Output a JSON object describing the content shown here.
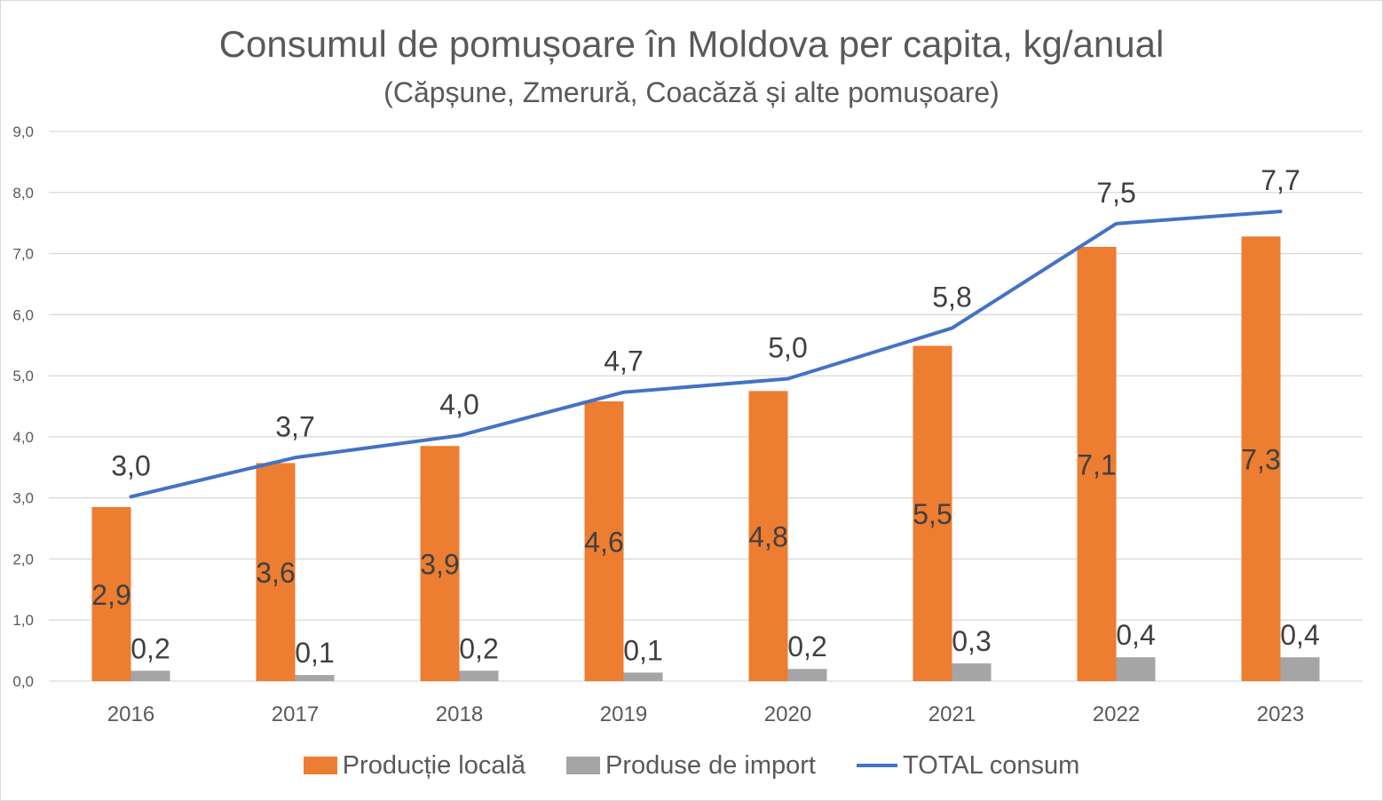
{
  "colors": {
    "local": "#ed7d31",
    "import": "#a5a5a5",
    "total": "#4472c4",
    "grid": "#d9d9d9"
  },
  "chart_data": {
    "type": "bar",
    "title": "Consumul de pomușoare în Moldova per capita, kg/anual",
    "subtitle": "(Căpșune, Zmerură, Coacăză și alte pomușoare)",
    "xlabel": "",
    "ylabel": "",
    "ylim": [
      0,
      9
    ],
    "yticks": [
      "0,0",
      "1,0",
      "2,0",
      "3,0",
      "4,0",
      "5,0",
      "6,0",
      "7,0",
      "8,0",
      "9,0"
    ],
    "grid": true,
    "legend_position": "bottom",
    "categories": [
      "2016",
      "2017",
      "2018",
      "2019",
      "2020",
      "2021",
      "2022",
      "2023"
    ],
    "series": [
      {
        "name": "Producție locală",
        "kind": "bar",
        "values": [
          2.85,
          3.57,
          3.85,
          4.58,
          4.75,
          5.49,
          7.11,
          7.28
        ],
        "labels": [
          "2,9",
          "3,6",
          "3,9",
          "4,6",
          "4,8",
          "5,5",
          "7,1",
          "7,3"
        ]
      },
      {
        "name": "Produse de import",
        "kind": "bar",
        "values": [
          0.17,
          0.1,
          0.17,
          0.14,
          0.2,
          0.29,
          0.39,
          0.39
        ],
        "labels": [
          "0,2",
          "0,1",
          "0,2",
          "0,1",
          "0,2",
          "0,3",
          "0,4",
          "0,4"
        ]
      },
      {
        "name": "TOTAL consum",
        "kind": "line",
        "values": [
          3.02,
          3.66,
          4.02,
          4.73,
          4.95,
          5.78,
          7.49,
          7.69
        ],
        "labels": [
          "3,0",
          "3,7",
          "4,0",
          "4,7",
          "5,0",
          "5,8",
          "7,5",
          "7,7"
        ]
      }
    ]
  }
}
